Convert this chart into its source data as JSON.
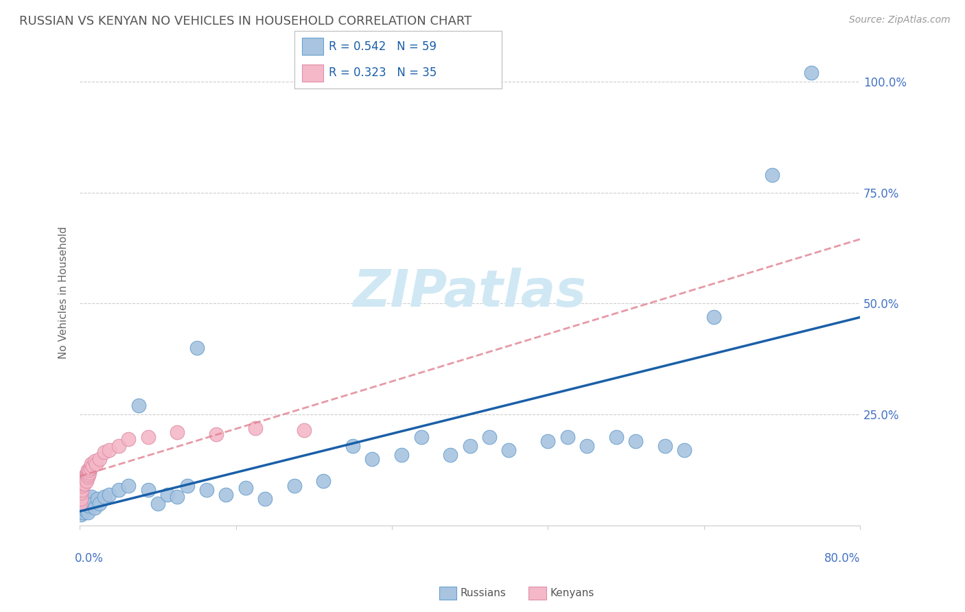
{
  "title": "RUSSIAN VS KENYAN NO VEHICLES IN HOUSEHOLD CORRELATION CHART",
  "source": "Source: ZipAtlas.com",
  "ylabel": "No Vehicles in Household",
  "legend_r_russian": "R = 0.542",
  "legend_n_russian": "N = 59",
  "legend_r_kenyan": "R = 0.323",
  "legend_n_kenyan": "N = 35",
  "russian_fill": "#a8c4e0",
  "russian_edge": "#6aa0cc",
  "kenyan_fill": "#f4b8c8",
  "kenyan_edge": "#e090a8",
  "russian_line_color": "#1a5fa8",
  "kenyan_line_color": "#e08090",
  "grid_color": "#cccccc",
  "tick_color": "#4472c4",
  "title_color": "#555555",
  "source_color": "#999999",
  "watermark_color": "#d0e8f4",
  "figsize": [
    14.06,
    8.92
  ],
  "dpi": 100,
  "xlim": [
    0,
    80
  ],
  "ylim": [
    0,
    105
  ],
  "russian_x": [
    0.1,
    0.15,
    0.2,
    0.25,
    0.3,
    0.35,
    0.4,
    0.45,
    0.5,
    0.55,
    0.6,
    0.65,
    0.7,
    0.75,
    0.8,
    0.85,
    0.9,
    1.0,
    1.1,
    1.2,
    1.3,
    1.5,
    1.8,
    2.0,
    2.5,
    3.0,
    4.0,
    5.0,
    6.0,
    7.0,
    8.0,
    9.0,
    10.0,
    11.0,
    12.0,
    13.0,
    15.0,
    17.0,
    19.0,
    22.0,
    25.0,
    28.0,
    30.0,
    33.0,
    35.0,
    38.0,
    40.0,
    42.0,
    44.0,
    48.0,
    50.0,
    52.0,
    55.0,
    57.0,
    60.0,
    62.0,
    65.0,
    71.0,
    75.0
  ],
  "russian_y": [
    3.0,
    2.5,
    4.0,
    3.5,
    4.5,
    3.0,
    5.0,
    4.0,
    5.5,
    4.5,
    3.5,
    4.0,
    5.0,
    4.5,
    3.0,
    5.0,
    4.5,
    6.0,
    5.5,
    6.5,
    5.0,
    4.0,
    6.0,
    5.0,
    6.5,
    7.0,
    8.0,
    9.0,
    27.0,
    8.0,
    5.0,
    7.0,
    6.5,
    9.0,
    40.0,
    8.0,
    7.0,
    8.5,
    6.0,
    9.0,
    10.0,
    18.0,
    15.0,
    16.0,
    20.0,
    16.0,
    18.0,
    20.0,
    17.0,
    19.0,
    20.0,
    18.0,
    20.0,
    19.0,
    18.0,
    17.0,
    47.0,
    79.0,
    102.0
  ],
  "kenyan_x": [
    0.05,
    0.1,
    0.15,
    0.2,
    0.25,
    0.3,
    0.35,
    0.4,
    0.45,
    0.5,
    0.55,
    0.6,
    0.65,
    0.7,
    0.75,
    0.8,
    0.85,
    0.9,
    0.95,
    1.0,
    1.1,
    1.2,
    1.3,
    1.5,
    1.7,
    2.0,
    2.5,
    3.0,
    4.0,
    5.0,
    7.0,
    10.0,
    14.0,
    18.0,
    23.0
  ],
  "kenyan_y": [
    5.0,
    6.0,
    7.5,
    8.0,
    9.0,
    10.5,
    9.5,
    11.0,
    10.0,
    9.5,
    11.0,
    10.5,
    11.5,
    10.0,
    12.0,
    11.0,
    12.5,
    11.5,
    12.0,
    12.5,
    13.0,
    14.0,
    13.5,
    14.5,
    14.0,
    15.0,
    16.5,
    17.0,
    18.0,
    19.5,
    20.0,
    21.0,
    20.5,
    22.0,
    21.5
  ]
}
